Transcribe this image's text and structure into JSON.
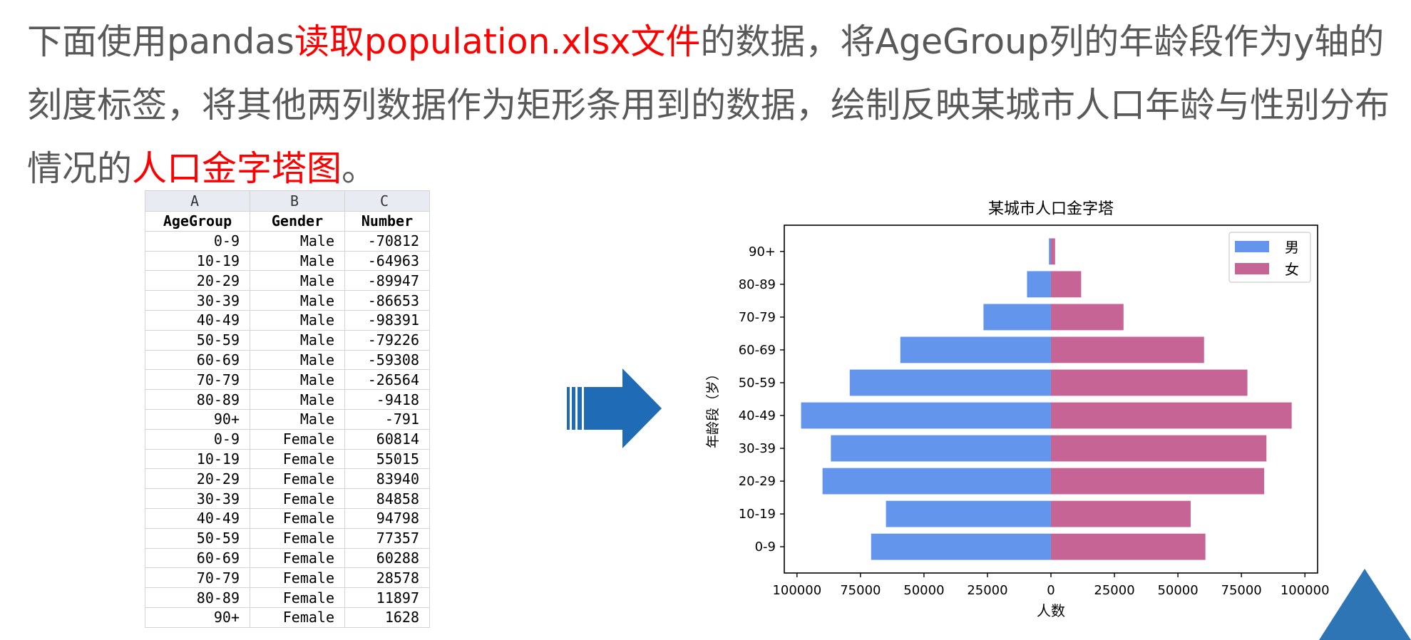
{
  "intro": {
    "p1": "下面使用pandas",
    "p2": "读取population.xlsx文件",
    "p3": "的数据，将AgeGroup列的年龄段作为y轴的刻度标签，将其他两列数据作为矩形条用到的数据，绘制反映某城市人口年龄与性别分布情况的",
    "p4": "人口金字塔图",
    "p5": "。"
  },
  "sheet": {
    "col_letters": [
      "A",
      "B",
      "C"
    ],
    "headers": [
      "AgeGroup",
      "Gender",
      "Number"
    ],
    "rows": [
      [
        "0-9",
        "Male",
        "-70812"
      ],
      [
        "10-19",
        "Male",
        "-64963"
      ],
      [
        "20-29",
        "Male",
        "-89947"
      ],
      [
        "30-39",
        "Male",
        "-86653"
      ],
      [
        "40-49",
        "Male",
        "-98391"
      ],
      [
        "50-59",
        "Male",
        "-79226"
      ],
      [
        "60-69",
        "Male",
        "-59308"
      ],
      [
        "70-79",
        "Male",
        "-26564"
      ],
      [
        "80-89",
        "Male",
        "-9418"
      ],
      [
        "90+",
        "Male",
        "-791"
      ],
      [
        "0-9",
        "Female",
        "60814"
      ],
      [
        "10-19",
        "Female",
        "55015"
      ],
      [
        "20-29",
        "Female",
        "83940"
      ],
      [
        "30-39",
        "Female",
        "84858"
      ],
      [
        "40-49",
        "Female",
        "94798"
      ],
      [
        "50-59",
        "Female",
        "77357"
      ],
      [
        "60-69",
        "Female",
        "60288"
      ],
      [
        "70-79",
        "Female",
        "28578"
      ],
      [
        "80-89",
        "Female",
        "11897"
      ],
      [
        "90+",
        "Female",
        "1628"
      ]
    ]
  },
  "arrow": {
    "icon": "right-arrow-icon",
    "color": "#1f6bb5"
  },
  "chart_data": {
    "type": "bar",
    "orientation": "horizontal",
    "title": "某城市人口金字塔",
    "xlabel": "人数",
    "ylabel": "年龄段（岁）",
    "categories": [
      "0-9",
      "10-19",
      "20-29",
      "30-39",
      "40-49",
      "50-59",
      "60-69",
      "70-79",
      "80-89",
      "90+"
    ],
    "series": [
      {
        "name": "男",
        "color": "#6495ed",
        "values": [
          -70812,
          -64963,
          -89947,
          -86653,
          -98391,
          -79226,
          -59308,
          -26564,
          -9418,
          -791
        ]
      },
      {
        "name": "女",
        "color": "#c76496",
        "values": [
          60814,
          55015,
          83940,
          84858,
          94798,
          77357,
          60288,
          28578,
          11897,
          1628
        ]
      }
    ],
    "xlim": [
      -105000,
      105000
    ],
    "xticks": [
      -100000,
      -75000,
      -50000,
      -25000,
      0,
      25000,
      50000,
      75000,
      100000
    ],
    "xtick_labels": [
      "100000",
      "75000",
      "50000",
      "25000",
      "0",
      "25000",
      "50000",
      "75000",
      "100000"
    ],
    "legend_position": "top-right",
    "grid": false
  },
  "decor": {
    "shape": "triangle",
    "color": "#2e75b6"
  }
}
